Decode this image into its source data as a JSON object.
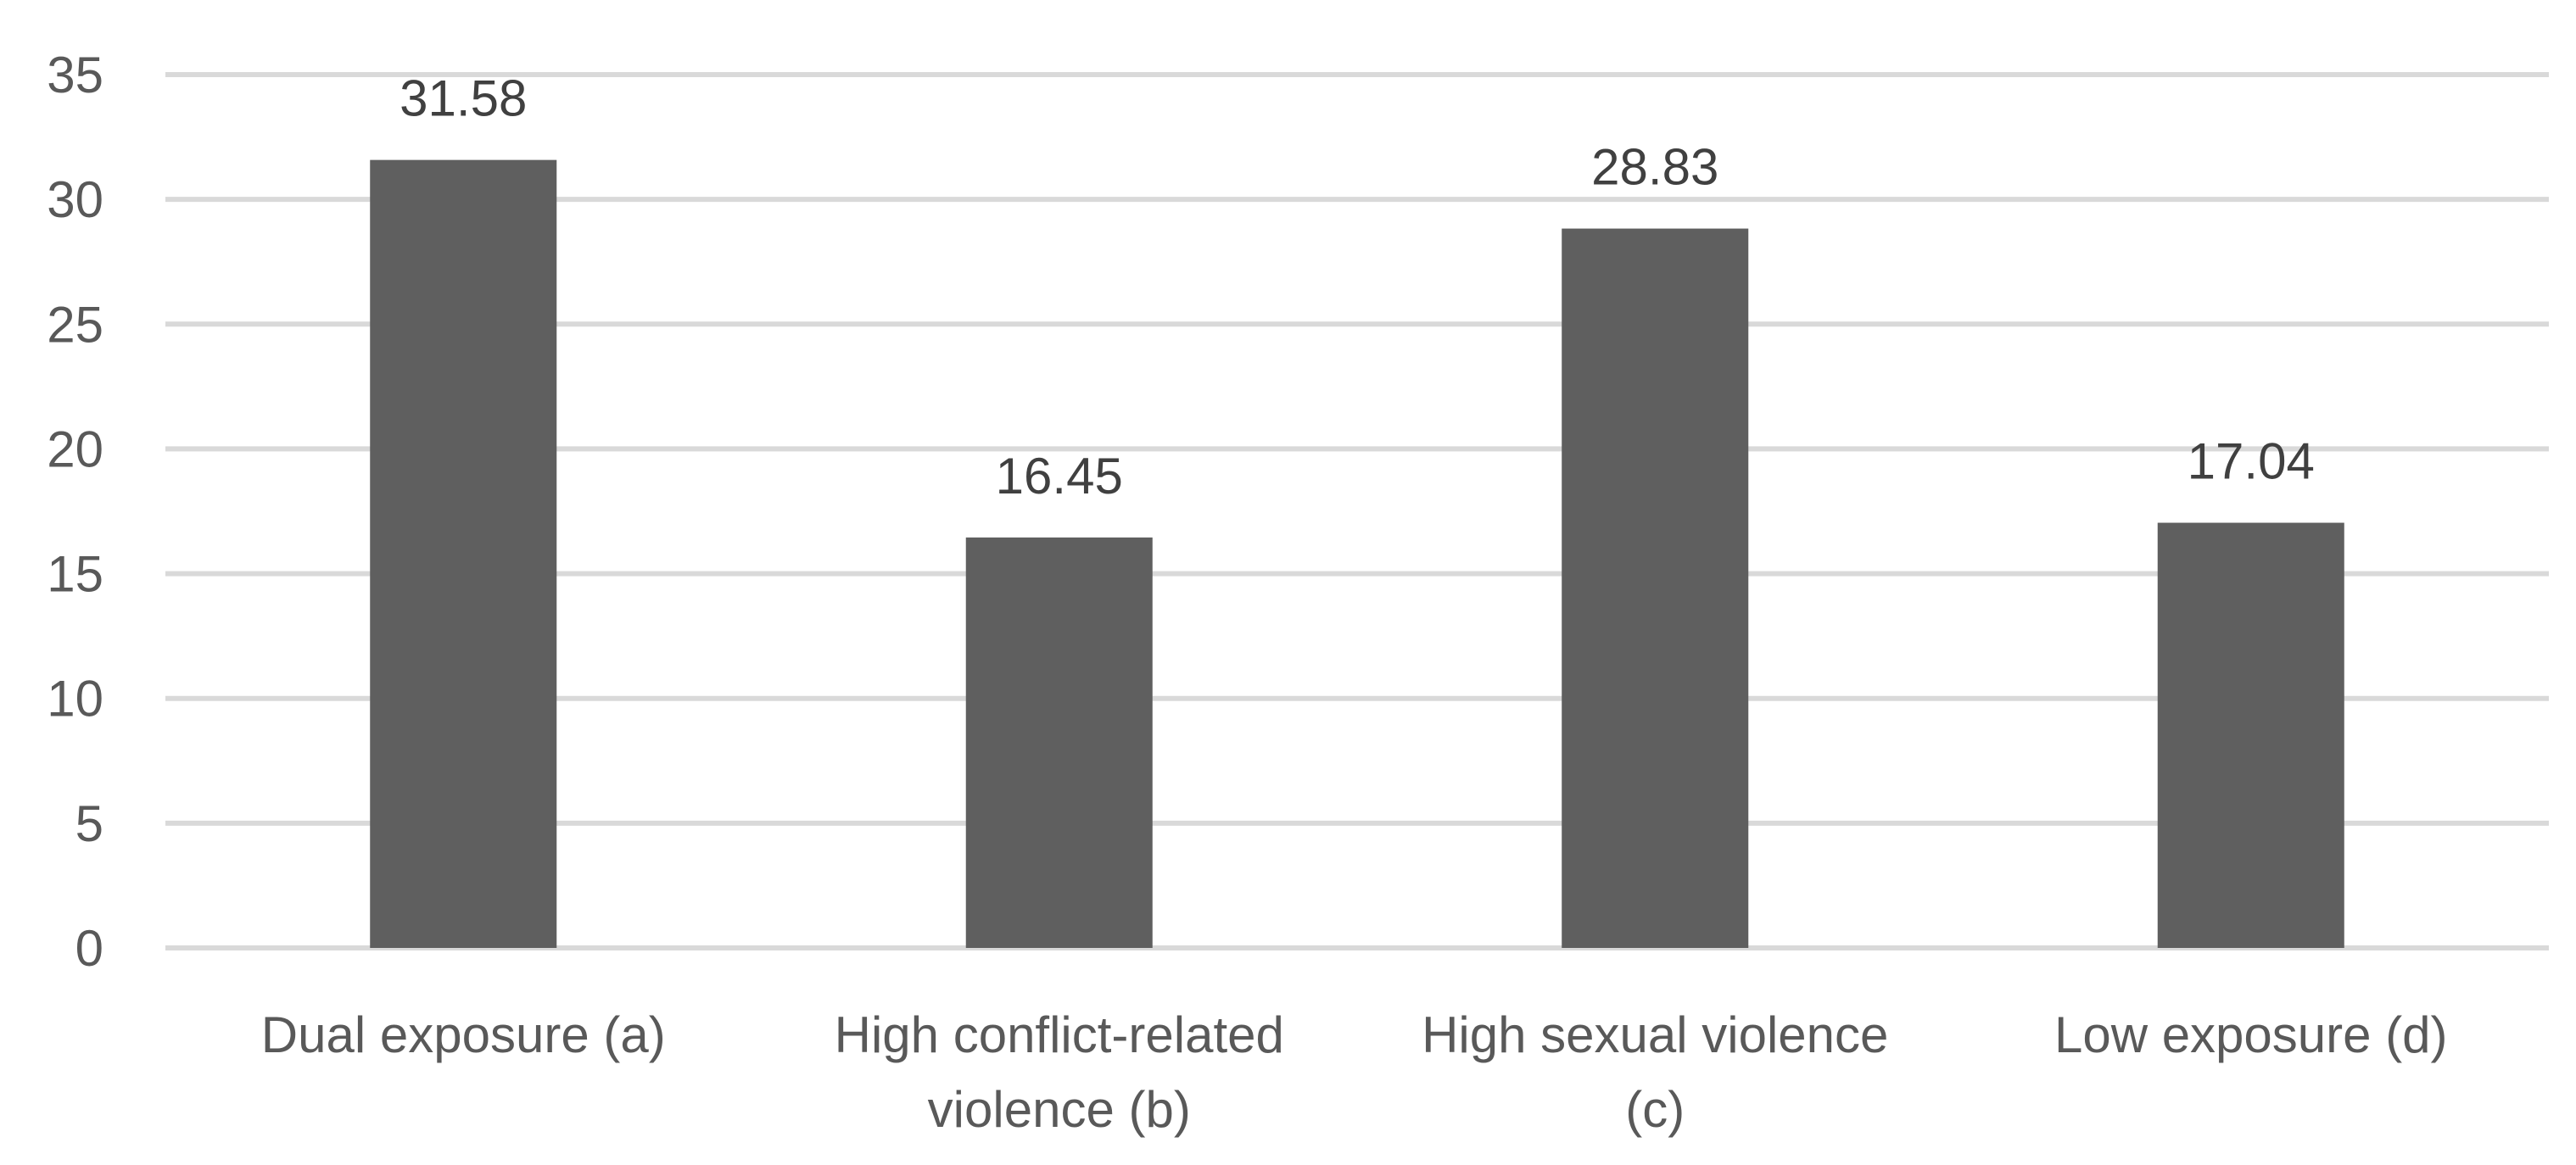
{
  "chart_data": {
    "type": "bar",
    "categories": [
      [
        "Dual exposure (a)"
      ],
      [
        "High conflict-related",
        "violence (b)"
      ],
      [
        "High sexual violence",
        "(c)"
      ],
      [
        "Low exposure (d)"
      ]
    ],
    "values": [
      31.58,
      16.45,
      28.83,
      17.04
    ],
    "data_labels": [
      "31.58",
      "16.45",
      "28.83",
      "17.04"
    ],
    "y_ticks": [
      "0",
      "5",
      "10",
      "15",
      "20",
      "25",
      "30",
      "35"
    ],
    "ylim": [
      0,
      35
    ],
    "title": "",
    "xlabel": "",
    "ylabel": "",
    "grid": true,
    "legend": "none",
    "colors": {
      "bar": "#5f5f5f",
      "grid": "#d9d9d9",
      "tick_text": "#595959",
      "data_label_text": "#404040"
    }
  }
}
